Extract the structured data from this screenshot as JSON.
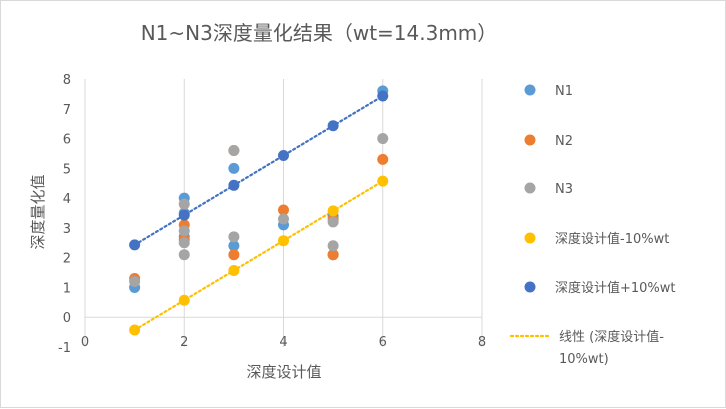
{
  "chart_data": {
    "type": "scatter",
    "title": "N1~N3深度量化结果（wt=14.3mm）",
    "xlabel": "深度设计值",
    "ylabel": "深度量化值",
    "xlim": [
      0,
      8
    ],
    "ylim": [
      -1,
      8
    ],
    "x_ticks": [
      "0",
      "2",
      "4",
      "6",
      "8"
    ],
    "y_ticks": [
      "-1",
      "0",
      "1",
      "2",
      "3",
      "4",
      "5",
      "6",
      "7",
      "8"
    ],
    "grid": "vertical",
    "legend_position": "right",
    "series": [
      {
        "name": "N1",
        "color": "#5b9bd5",
        "points": [
          [
            1,
            1.0
          ],
          [
            2,
            4.0
          ],
          [
            2,
            3.5
          ],
          [
            2,
            2.7
          ],
          [
            3,
            5.0
          ],
          [
            3,
            2.4
          ],
          [
            4,
            3.1
          ],
          [
            5,
            3.4
          ],
          [
            5,
            2.1
          ],
          [
            6,
            7.6
          ]
        ]
      },
      {
        "name": "N2",
        "color": "#ed7d31",
        "points": [
          [
            1,
            1.3
          ],
          [
            2,
            3.1
          ],
          [
            2,
            2.6
          ],
          [
            3,
            5.6
          ],
          [
            3,
            2.1
          ],
          [
            4,
            3.6
          ],
          [
            5,
            3.3
          ],
          [
            5,
            2.1
          ],
          [
            6,
            5.3
          ]
        ]
      },
      {
        "name": "N3",
        "color": "#a5a5a5",
        "points": [
          [
            1,
            1.2
          ],
          [
            2,
            3.8
          ],
          [
            2,
            2.9
          ],
          [
            2,
            2.5
          ],
          [
            2,
            2.1
          ],
          [
            3,
            5.6
          ],
          [
            3,
            2.7
          ],
          [
            4,
            3.3
          ],
          [
            5,
            3.2
          ],
          [
            5,
            2.4
          ],
          [
            6,
            6.0
          ]
        ]
      },
      {
        "name": "深度设计值-10%wt",
        "color": "#ffc000",
        "points": [
          [
            1,
            -0.43
          ],
          [
            2,
            0.57
          ],
          [
            3,
            1.57
          ],
          [
            4,
            2.57
          ],
          [
            5,
            3.57
          ],
          [
            6,
            4.57
          ]
        ]
      },
      {
        "name": "深度设计值+10%wt",
        "color": "#4472c4",
        "points": [
          [
            1,
            2.43
          ],
          [
            2,
            3.43
          ],
          [
            3,
            4.43
          ],
          [
            4,
            5.43
          ],
          [
            5,
            6.43
          ],
          [
            6,
            7.43
          ]
        ]
      }
    ],
    "trendlines": [
      {
        "name": "线性 (深度设计值-10%wt)",
        "of_series": 3,
        "color": "#ffc000",
        "style": "dotted"
      },
      {
        "name": "",
        "of_series": 4,
        "color": "#4472c4",
        "style": "dotted"
      }
    ]
  }
}
